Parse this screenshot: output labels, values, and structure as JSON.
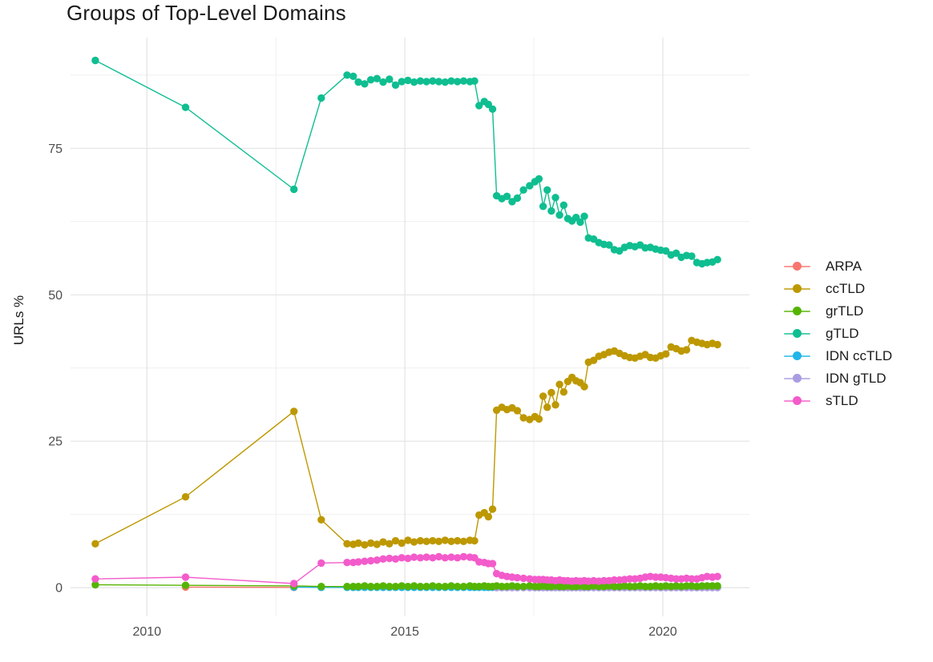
{
  "title": "Groups of Top-Level Domains",
  "axes": {
    "y_title": "URLs %",
    "x_ticks": [
      {
        "label": "2010",
        "value": 2010
      },
      {
        "label": "2015",
        "value": 2015
      },
      {
        "label": "2020",
        "value": 2020
      }
    ],
    "y_ticks": [
      {
        "label": "0",
        "value": 0
      },
      {
        "label": "25",
        "value": 25
      },
      {
        "label": "50",
        "value": 50
      },
      {
        "label": "75",
        "value": 75
      }
    ]
  },
  "legend": {
    "items": [
      {
        "label": "ARPA",
        "color": "#F8766D"
      },
      {
        "label": "ccTLD",
        "color": "#BD9800"
      },
      {
        "label": "grTLD",
        "color": "#55B400"
      },
      {
        "label": "gTLD",
        "color": "#0FBE90"
      },
      {
        "label": "IDN ccTLD",
        "color": "#1FB5E9"
      },
      {
        "label": "IDN gTLD",
        "color": "#AB9CE2"
      },
      {
        "label": "sTLD",
        "color": "#F35BCB"
      }
    ]
  },
  "chart_data": {
    "type": "line",
    "title": "Groups of Top-Level Domains",
    "xlabel": "",
    "ylabel": "URLs %",
    "x_domain": [
      2008.52,
      2021.68
    ],
    "y_domain": [
      -4.9,
      93.9
    ],
    "x_major": [
      2010,
      2015,
      2020
    ],
    "x_minor": [
      2012.5,
      2017.5
    ],
    "y_major": [
      0,
      25,
      50,
      75
    ],
    "y_minor": [
      12.5,
      37.5,
      62.5,
      87.5
    ],
    "grid_major_color": "#E3E3E3",
    "grid_minor_color": "#EFEFEF",
    "panel": {
      "x0": 88,
      "y0": 47,
      "x1": 935,
      "y1": 770
    },
    "x": [
      2009.0,
      2010.75,
      2012.85,
      2013.38,
      2013.88,
      2014.0,
      2014.1,
      2014.22,
      2014.34,
      2014.46,
      2014.58,
      2014.7,
      2014.82,
      2014.94,
      2015.06,
      2015.18,
      2015.3,
      2015.42,
      2015.54,
      2015.66,
      2015.78,
      2015.9,
      2016.02,
      2016.14,
      2016.26,
      2016.35,
      2016.44,
      2016.54,
      2016.62,
      2016.7,
      2016.78,
      2016.88,
      2016.98,
      2017.08,
      2017.18,
      2017.3,
      2017.42,
      2017.52,
      2017.6,
      2017.68,
      2017.76,
      2017.84,
      2017.92,
      2018.0,
      2018.08,
      2018.16,
      2018.24,
      2018.32,
      2018.4,
      2018.48,
      2018.56,
      2018.66,
      2018.76,
      2018.86,
      2018.96,
      2019.06,
      2019.16,
      2019.26,
      2019.36,
      2019.46,
      2019.56,
      2019.66,
      2019.76,
      2019.86,
      2019.96,
      2020.06,
      2020.16,
      2020.26,
      2020.36,
      2020.46,
      2020.56,
      2020.66,
      2020.76,
      2020.86,
      2020.96,
      2021.06
    ],
    "series": [
      {
        "name": "ARPA",
        "color": "#F8766D",
        "x_start_index": 1,
        "values": [
          0.1,
          0.05
        ]
      },
      {
        "name": "IDN ccTLD",
        "color": "#1FB5E9",
        "x_start_index": 2,
        "values": [
          0.1,
          0.05,
          0.05,
          0.05,
          0.05,
          0.05,
          0.05,
          0.05,
          0.05,
          0.05,
          0.05,
          0.05,
          0.05,
          0.05,
          0.05,
          0.05,
          0.05,
          0.05,
          0.05,
          0.05,
          0.05,
          0.05,
          0.05,
          0.05,
          0.05,
          0.05,
          0.05,
          0.05,
          0.05,
          0.05,
          0.05,
          0.05,
          0.05,
          0.05,
          0.05,
          0.05,
          0.05,
          0.05,
          0.05,
          0.05,
          0.05,
          0.05,
          0.05,
          0.05,
          0.05,
          0.05,
          0.05,
          0.05,
          0.05,
          0.05,
          0.05,
          0.05,
          0.05,
          0.05,
          0.05,
          0.05,
          0.05,
          0.05,
          0.05,
          0.05,
          0.05,
          0.05,
          0.05,
          0.05,
          0.05,
          0.05,
          0.05,
          0.05,
          0.05,
          0.05,
          0.05,
          0.05,
          0.05,
          0.05
        ]
      },
      {
        "name": "IDN gTLD",
        "color": "#AB9CE2",
        "x_start_index": 30,
        "values": [
          0.02,
          0.02,
          0.02,
          0.02,
          0.02,
          0.02,
          0.02,
          0.02,
          0.02,
          0.02,
          0.02,
          0.02,
          0.02,
          0.02,
          0.02,
          0.02,
          0.02,
          0.02,
          0.02,
          0.02,
          0.02,
          0.02,
          0.02,
          0.02,
          0.02,
          0.02,
          0.02,
          0.02,
          0.02,
          0.02,
          0.02,
          0.02,
          0.02,
          0.02,
          0.02,
          0.02,
          0.02,
          0.02,
          0.02,
          0.02,
          0.02,
          0.02,
          0.02,
          0.02,
          0.02,
          0.02
        ]
      },
      {
        "name": "grTLD",
        "color": "#55B400",
        "x_start_index": 0,
        "values": [
          0.5,
          0.4,
          0.3,
          0.2,
          0.2,
          0.2,
          0.2,
          0.3,
          0.2,
          0.2,
          0.3,
          0.2,
          0.2,
          0.3,
          0.2,
          0.3,
          0.2,
          0.2,
          0.3,
          0.2,
          0.2,
          0.3,
          0.2,
          0.2,
          0.3,
          0.2,
          0.2,
          0.3,
          0.2,
          0.2,
          0.3,
          0.2,
          0.2,
          0.3,
          0.2,
          0.2,
          0.3,
          0.2,
          0.2,
          0.3,
          0.2,
          0.2,
          0.3,
          0.2,
          0.2,
          0.3,
          0.2,
          0.2,
          0.3,
          0.2,
          0.2,
          0.3,
          0.2,
          0.2,
          0.3,
          0.2,
          0.2,
          0.3,
          0.2,
          0.2,
          0.3,
          0.2,
          0.2,
          0.3,
          0.2,
          0.3,
          0.2,
          0.3,
          0.2,
          0.3,
          0.3,
          0.2,
          0.3,
          0.3,
          0.3,
          0.3
        ]
      },
      {
        "name": "gTLD",
        "color": "#0FBE90",
        "x_start_index": 0,
        "values": [
          90.0,
          82.0,
          68.0,
          83.6,
          87.5,
          87.3,
          86.3,
          86.0,
          86.7,
          86.9,
          86.3,
          86.8,
          85.8,
          86.4,
          86.6,
          86.3,
          86.5,
          86.4,
          86.5,
          86.4,
          86.3,
          86.5,
          86.4,
          86.5,
          86.4,
          86.5,
          82.3,
          83.0,
          82.5,
          81.7,
          66.9,
          66.4,
          66.8,
          65.9,
          66.5,
          67.9,
          68.6,
          69.3,
          69.8,
          65.1,
          67.9,
          64.3,
          66.6,
          63.6,
          65.3,
          63.0,
          62.6,
          63.2,
          62.4,
          63.4,
          59.7,
          59.5,
          58.9,
          58.6,
          58.5,
          57.7,
          57.5,
          58.1,
          58.4,
          58.2,
          58.5,
          58.0,
          58.1,
          57.8,
          57.6,
          57.5,
          56.8,
          57.1,
          56.4,
          56.7,
          56.6,
          55.5,
          55.3,
          55.5,
          55.6,
          56.0
        ]
      },
      {
        "name": "ccTLD",
        "color": "#BD9800",
        "x_start_index": 0,
        "values": [
          7.5,
          15.5,
          30.1,
          11.6,
          7.5,
          7.4,
          7.6,
          7.3,
          7.6,
          7.4,
          7.8,
          7.5,
          8.0,
          7.6,
          8.1,
          7.8,
          8.0,
          7.9,
          8.0,
          7.9,
          8.1,
          7.9,
          8.0,
          7.9,
          8.1,
          8.0,
          12.4,
          12.8,
          12.1,
          13.4,
          30.3,
          30.8,
          30.4,
          30.7,
          30.2,
          29.0,
          28.7,
          29.2,
          28.8,
          32.7,
          30.8,
          33.3,
          31.2,
          34.7,
          33.4,
          35.2,
          35.9,
          35.3,
          35.0,
          34.3,
          38.5,
          38.8,
          39.5,
          39.8,
          40.2,
          40.4,
          40.0,
          39.6,
          39.3,
          39.2,
          39.5,
          39.8,
          39.3,
          39.2,
          39.6,
          39.9,
          41.1,
          40.8,
          40.4,
          40.6,
          42.2,
          41.9,
          41.7,
          41.5,
          41.7,
          41.5
        ]
      },
      {
        "name": "sTLD",
        "color": "#F35BCB",
        "x_start_index": 0,
        "values": [
          1.5,
          1.8,
          0.7,
          4.2,
          4.3,
          4.3,
          4.4,
          4.5,
          4.6,
          4.7,
          4.9,
          5.0,
          4.9,
          5.1,
          5.0,
          5.2,
          5.1,
          5.2,
          5.1,
          5.3,
          5.1,
          5.2,
          5.1,
          5.3,
          5.2,
          5.1,
          4.4,
          4.3,
          4.1,
          4.1,
          2.4,
          2.1,
          1.9,
          1.8,
          1.7,
          1.6,
          1.5,
          1.4,
          1.4,
          1.4,
          1.3,
          1.3,
          1.2,
          1.3,
          1.2,
          1.2,
          1.1,
          1.2,
          1.1,
          1.2,
          1.1,
          1.2,
          1.1,
          1.2,
          1.2,
          1.3,
          1.3,
          1.4,
          1.5,
          1.5,
          1.6,
          1.8,
          1.9,
          1.8,
          1.8,
          1.7,
          1.6,
          1.5,
          1.5,
          1.6,
          1.5,
          1.5,
          1.7,
          1.9,
          1.8,
          1.9
        ]
      }
    ]
  }
}
